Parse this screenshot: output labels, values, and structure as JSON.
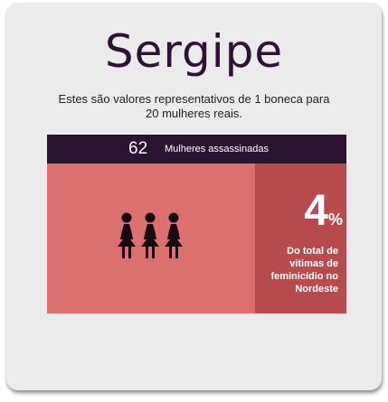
{
  "title": "Sergipe",
  "subtitle_line1": "Estes são valores representativos de 1 boneca para",
  "subtitle_line2": "20 mulheres reais.",
  "stats": {
    "count": "62",
    "count_label": "Mulheres assassinadas"
  },
  "dolls": {
    "count": 3,
    "icon": "woman-figure-icon"
  },
  "percent": {
    "value": "4",
    "symbol": "%",
    "description_lines": [
      "Do total de",
      "vitimas de",
      "feminicídio no",
      "Nordeste"
    ]
  },
  "colors": {
    "dark": "#2b1331",
    "panel": "#dc6f6f",
    "side": "#b74b4d",
    "card": "#ebebeb"
  }
}
